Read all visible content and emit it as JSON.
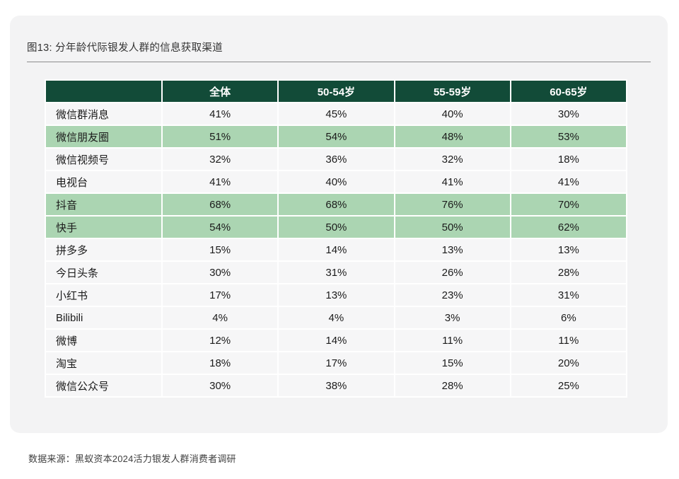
{
  "figure": {
    "title": "图13: 分年龄代际银发人群的信息获取渠道",
    "source": "数据来源：黑蚁资本2024活力银发人群消费者调研"
  },
  "colors": {
    "header_bg": "#124b38",
    "header_text": "#ffffff",
    "highlight_row_bg": "#abd5b2",
    "row_bg": "#f6f6f7",
    "card_bg": "#f3f3f4"
  },
  "chart_data": {
    "type": "table",
    "title": "图13: 分年龄代际银发人群的信息获取渠道",
    "columns": [
      "",
      "全体",
      "50-54岁",
      "55-59岁",
      "60-65岁"
    ],
    "rows": [
      {
        "label": "微信群消息",
        "values": [
          "41%",
          "45%",
          "40%",
          "30%"
        ],
        "highlighted": false
      },
      {
        "label": "微信朋友圈",
        "values": [
          "51%",
          "54%",
          "48%",
          "53%"
        ],
        "highlighted": true
      },
      {
        "label": "微信视频号",
        "values": [
          "32%",
          "36%",
          "32%",
          "18%"
        ],
        "highlighted": false
      },
      {
        "label": "电视台",
        "values": [
          "41%",
          "40%",
          "41%",
          "41%"
        ],
        "highlighted": false
      },
      {
        "label": "抖音",
        "values": [
          "68%",
          "68%",
          "76%",
          "70%"
        ],
        "highlighted": true
      },
      {
        "label": "快手",
        "values": [
          "54%",
          "50%",
          "50%",
          "62%"
        ],
        "highlighted": true
      },
      {
        "label": "拼多多",
        "values": [
          "15%",
          "14%",
          "13%",
          "13%"
        ],
        "highlighted": false
      },
      {
        "label": "今日头条",
        "values": [
          "30%",
          "31%",
          "26%",
          "28%"
        ],
        "highlighted": false
      },
      {
        "label": "小红书",
        "values": [
          "17%",
          "13%",
          "23%",
          "31%"
        ],
        "highlighted": false
      },
      {
        "label": "Bilibili",
        "values": [
          "4%",
          "4%",
          "3%",
          "6%"
        ],
        "highlighted": false
      },
      {
        "label": "微博",
        "values": [
          "12%",
          "14%",
          "11%",
          "11%"
        ],
        "highlighted": false
      },
      {
        "label": "淘宝",
        "values": [
          "18%",
          "17%",
          "15%",
          "20%"
        ],
        "highlighted": false
      },
      {
        "label": "微信公众号",
        "values": [
          "30%",
          "38%",
          "28%",
          "25%"
        ],
        "highlighted": false
      }
    ],
    "source": "数据来源：黑蚁资本2024活力银发人群消费者调研",
    "legend_position": "none",
    "grid": false,
    "highlight_color": "#abd5b2"
  }
}
